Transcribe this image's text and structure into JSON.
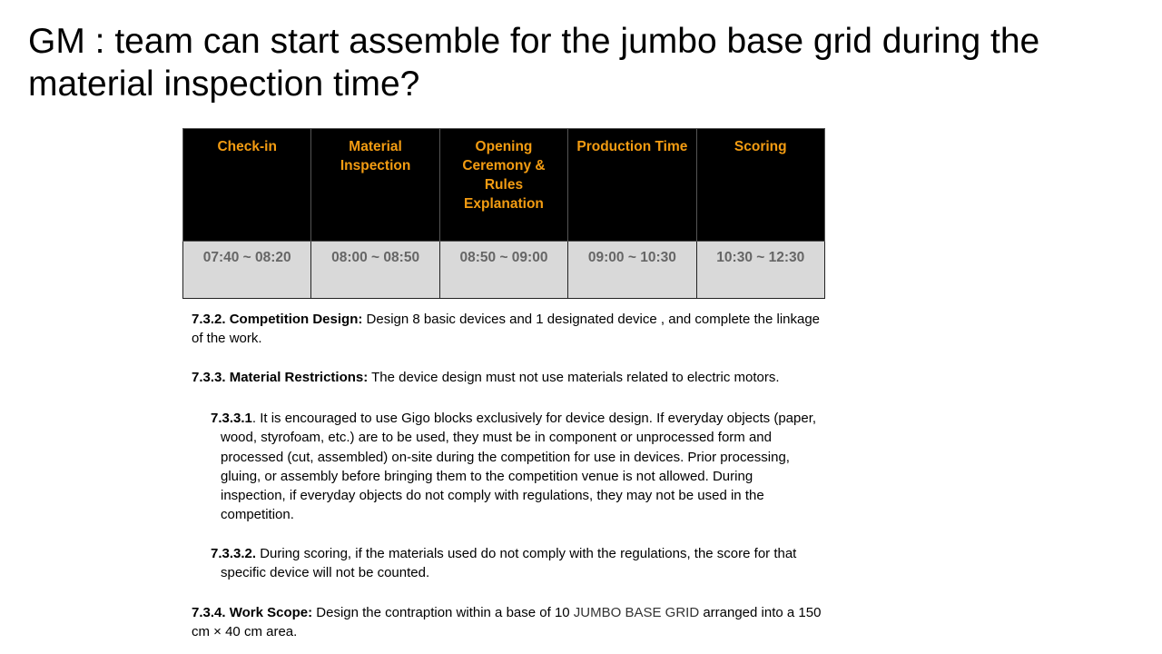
{
  "title_lines": [
    "GM : team can start assemble for the jumbo base grid during the",
    "material inspection time?"
  ],
  "schedule": {
    "headers": [
      "Check-in",
      "Material Inspection",
      "Opening Ceremony & Rules Explanation",
      "Production Time",
      "Scoring"
    ],
    "times": [
      "07:40 ~ 08:20",
      "08:00 ~ 08:50",
      "08:50 ~ 09:00",
      "09:00 ~ 10:30",
      "10:30 ~ 12:30"
    ]
  },
  "s732": {
    "label": "7.3.2. Competition Design:",
    "lines": [
      " Design 8 basic devices and 1 designated device , and complete the linkage",
      "of the work."
    ]
  },
  "s733": {
    "label": "7.3.3. Material Restrictions:",
    "lines": [
      " The device design must not use materials related to electric motors."
    ]
  },
  "s7331": {
    "label": "7.3.3.1",
    "lines": [
      ". It is encouraged to use Gigo blocks exclusively for device design. If everyday objects (paper,",
      "wood, styrofoam, etc.) are to be used, they must be in component or unprocessed form and",
      "processed (cut, assembled) on-site during the competition for use in devices. Prior processing,",
      "gluing, or assembly before bringing them to the competition venue is not allowed. During",
      "inspection, if everyday objects do not comply with regulations, they may not be used in the",
      "competition."
    ]
  },
  "s7332": {
    "label": "7.3.3.2.",
    "lines": [
      " During scoring, if the materials used do not comply with the regulations, the score for that",
      "specific device will not be counted."
    ]
  },
  "s734": {
    "label": "7.3.4. Work Scope:",
    "line1_pre": " Design the contraption within a base of 10 ",
    "line1_highlight": "JUMBO BASE GRID",
    "line1_post": " arranged into a 150",
    "line2": "cm × 40 cm area."
  }
}
